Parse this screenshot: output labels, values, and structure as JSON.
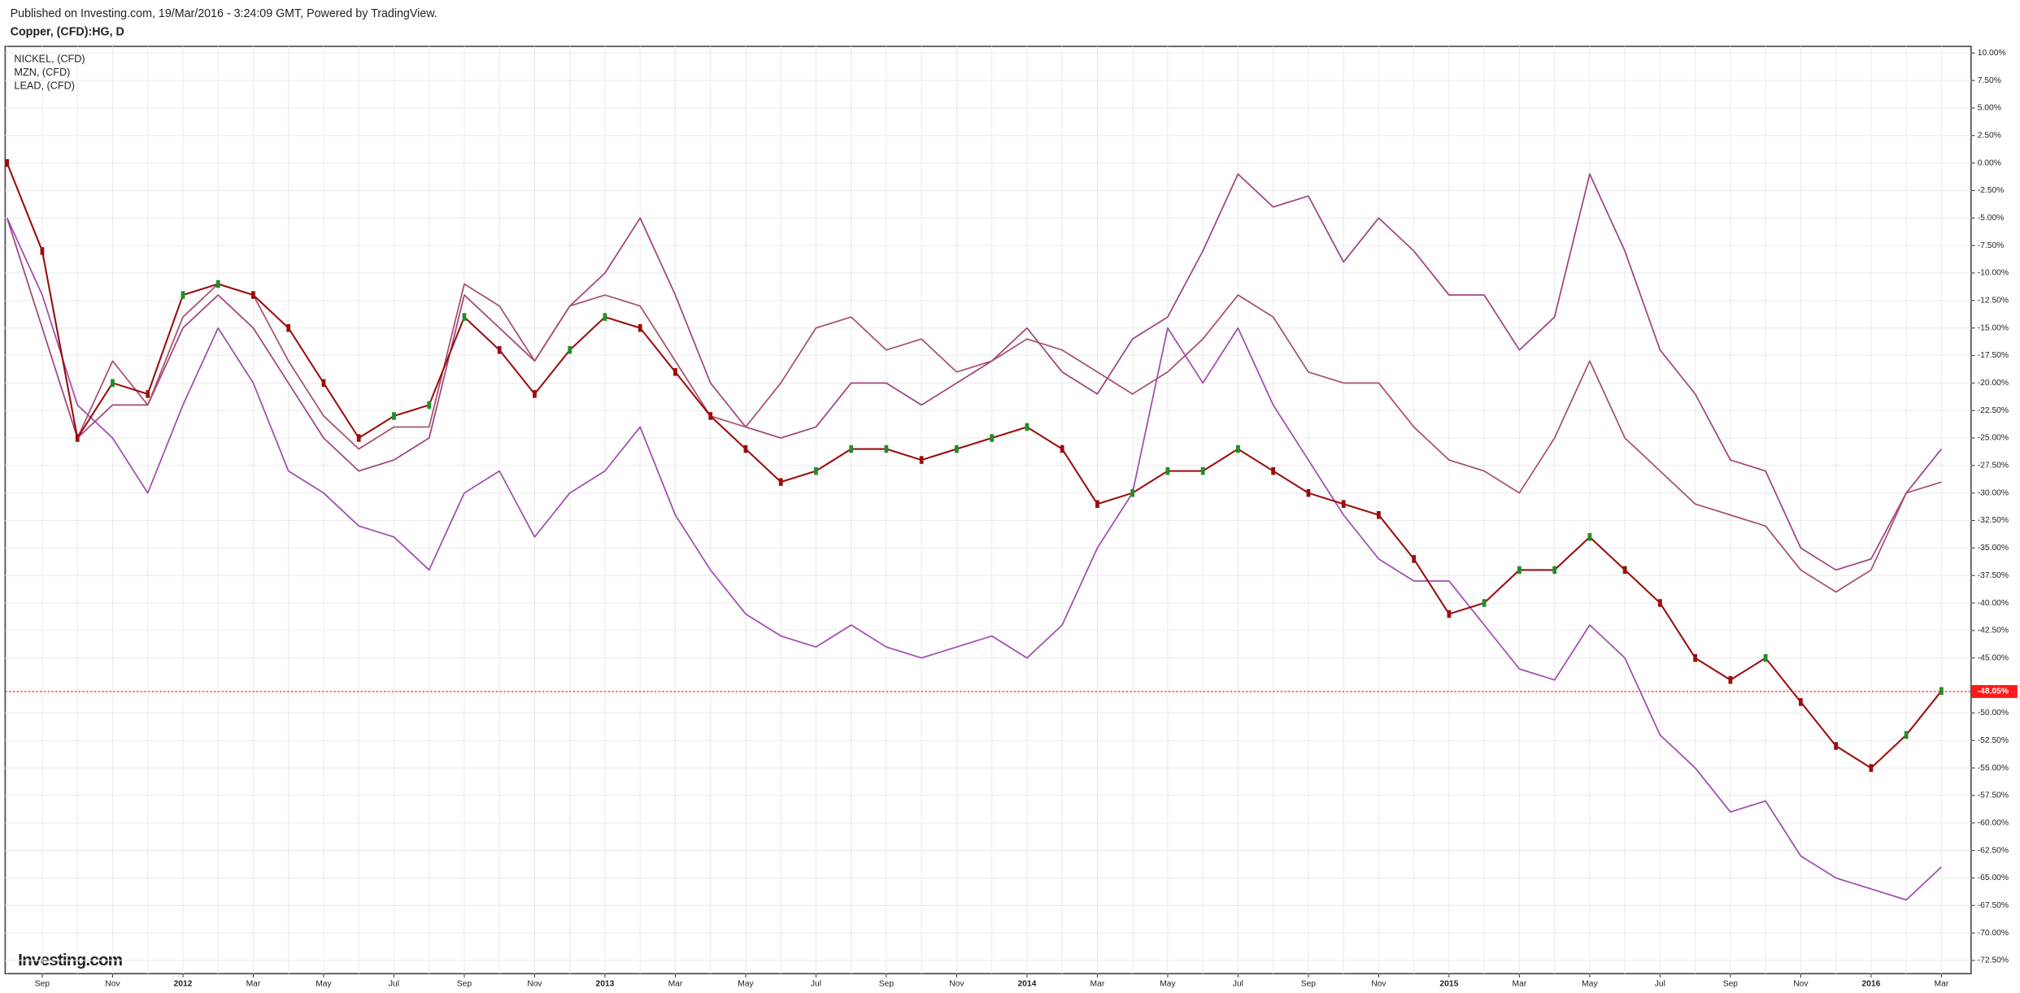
{
  "header": {
    "published": "Published on Investing.com, 19/Mar/2016 - 3:24:09 GMT, Powered by TradingView.",
    "symbol": "Copper, (CFD):HG, D"
  },
  "watermark": "Investing.com",
  "chart_data": {
    "type": "line",
    "categories": [
      null,
      "Sep",
      null,
      "Nov",
      null,
      "2012",
      null,
      "Mar",
      null,
      "May",
      null,
      "Jul",
      null,
      "Sep",
      null,
      "Nov",
      null,
      "2013",
      null,
      "Mar",
      null,
      "May",
      null,
      "Jul",
      null,
      "Sep",
      null,
      "Nov",
      null,
      "2014",
      null,
      "Mar",
      null,
      "May",
      null,
      "Jul",
      null,
      "Sep",
      null,
      "Nov",
      null,
      "2015",
      null,
      "Mar",
      null,
      "May",
      null,
      "Jul",
      null,
      "Sep",
      null,
      "Nov",
      null,
      "2016",
      null,
      "Mar"
    ],
    "main_series": {
      "color_up": "#1e8f2a",
      "color_down": "#9b0d0d",
      "values": [
        0,
        -8,
        -25,
        -20,
        -21,
        -12,
        -11,
        -12,
        -15,
        -20,
        -25,
        -23,
        -22,
        -14,
        -17,
        -21,
        -17,
        -14,
        -15,
        -19,
        -23,
        -26,
        -29,
        -28,
        -26,
        -26,
        -27,
        -26,
        -25,
        -24,
        -26,
        -31,
        -30,
        -28,
        -28,
        -26,
        -28,
        -30,
        -31,
        -32,
        -36,
        -41,
        -40,
        -37,
        -37,
        -34,
        -37,
        -40,
        -45,
        -47,
        -45,
        -49,
        -53,
        -55,
        -52,
        -48
      ],
      "last_value": -48.05,
      "last_value_label": "-48.05%",
      "last_color": "#ff1a1a"
    },
    "series": [
      {
        "name": "NICKEL,  (CFD)",
        "color": "#a24cb0",
        "values": [
          -5,
          -12,
          -22,
          -25,
          -30,
          -22,
          -15,
          -20,
          -28,
          -30,
          -33,
          -34,
          -37,
          -30,
          -28,
          -34,
          -30,
          -28,
          -24,
          -32,
          -37,
          -41,
          -43,
          -44,
          -42,
          -44,
          -45,
          -44,
          -43,
          -45,
          -42,
          -35,
          -30,
          -15,
          -20,
          -15,
          -22,
          -27,
          -32,
          -36,
          -38,
          -38,
          -42,
          -46,
          -47,
          -42,
          -45,
          -52,
          -55,
          -59,
          -58,
          -63,
          -65,
          -66,
          -67,
          -64
        ]
      },
      {
        "name": "MZN,  (CFD)",
        "color": "#a0457e",
        "values": [
          -5,
          -15,
          -25,
          -22,
          -22,
          -15,
          -12,
          -15,
          -20,
          -25,
          -28,
          -27,
          -25,
          -12,
          -15,
          -18,
          -13,
          -10,
          -5,
          -12,
          -20,
          -24,
          -25,
          -24,
          -20,
          -20,
          -22,
          -20,
          -18,
          -15,
          -19,
          -21,
          -16,
          -14,
          -8,
          -1,
          -4,
          -3,
          -9,
          -5,
          -8,
          -12,
          -12,
          -17,
          -14,
          -1,
          -8,
          -17,
          -21,
          -27,
          -28,
          -35,
          -37,
          -36,
          -30,
          -26
        ]
      },
      {
        "name": "LEAD,  (CFD)",
        "color": "#a8506e",
        "values": [
          0,
          -8,
          -25,
          -18,
          -22,
          -14,
          -11,
          -12,
          -18,
          -23,
          -26,
          -24,
          -24,
          -11,
          -13,
          -18,
          -13,
          -12,
          -13,
          -18,
          -23,
          -24,
          -20,
          -15,
          -14,
          -17,
          -16,
          -19,
          -18,
          -16,
          -17,
          -19,
          -21,
          -19,
          -16,
          -12,
          -14,
          -19,
          -20,
          -20,
          -24,
          -27,
          -28,
          -30,
          -25,
          -18,
          -25,
          -28,
          -31,
          -32,
          -33,
          -37,
          -39,
          -37,
          -30,
          -29
        ]
      }
    ],
    "ylim": [
      -73.7,
      10.6
    ],
    "yticks": [
      {
        "value": 10,
        "label": "10.00%"
      },
      {
        "value": 7.5,
        "label": "7.50%"
      },
      {
        "value": 5,
        "label": "5.00%"
      },
      {
        "value": 2.5,
        "label": "2.50%"
      },
      {
        "value": 0,
        "label": "0.00%"
      },
      {
        "value": -2.5,
        "label": "-2.50%"
      },
      {
        "value": -5,
        "label": "-5.00%"
      },
      {
        "value": -7.5,
        "label": "-7.50%"
      },
      {
        "value": -10,
        "label": "-10.00%"
      },
      {
        "value": -12.5,
        "label": "-12.50%"
      },
      {
        "value": -15,
        "label": "-15.00%"
      },
      {
        "value": -17.5,
        "label": "-17.50%"
      },
      {
        "value": -20,
        "label": "-20.00%"
      },
      {
        "value": -22.5,
        "label": "-22.50%"
      },
      {
        "value": -25,
        "label": "-25.00%"
      },
      {
        "value": -27.5,
        "label": "-27.50%"
      },
      {
        "value": -30,
        "label": "-30.00%"
      },
      {
        "value": -32.5,
        "label": "-32.50%"
      },
      {
        "value": -35,
        "label": "-35.00%"
      },
      {
        "value": -37.5,
        "label": "-37.50%"
      },
      {
        "value": -40,
        "label": "-40.00%"
      },
      {
        "value": -42.5,
        "label": "-42.50%"
      },
      {
        "value": -45,
        "label": "-45.00%"
      },
      {
        "value": -50,
        "label": "-50.00%"
      },
      {
        "value": -52.5,
        "label": "-52.50%"
      },
      {
        "value": -55,
        "label": "-55.00%"
      },
      {
        "value": -57.5,
        "label": "-57.50%"
      },
      {
        "value": -60,
        "label": "-60.00%"
      },
      {
        "value": -62.5,
        "label": "-62.50%"
      },
      {
        "value": -65,
        "label": "-65.00%"
      },
      {
        "value": -67.5,
        "label": "-67.50%"
      },
      {
        "value": -70,
        "label": "-70.00%"
      },
      {
        "value": -72.5,
        "label": "-72.50%"
      }
    ],
    "grid": true,
    "legend": "top-left"
  }
}
